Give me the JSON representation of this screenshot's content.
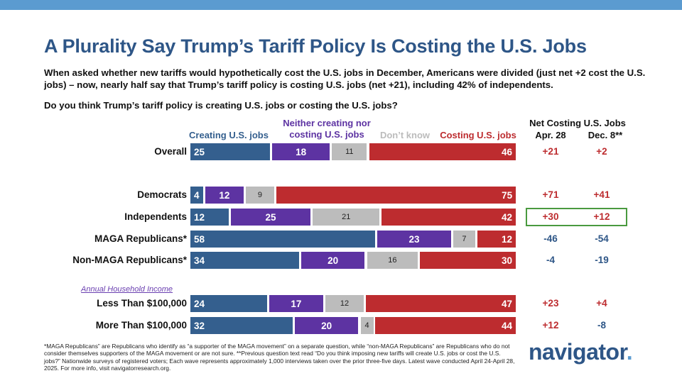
{
  "title": "A Plurality Say Trump’s Tariff Policy Is Costing the U.S. Jobs",
  "subtitle": "When asked whether new tariffs would hypothetically cost the U.S. jobs in December, Americans were divided (just net +2 cost the U.S. jobs) – now, nearly half say that Trump’s tariff policy is costing U.S. jobs (net +21), including 42% of independents.",
  "question": "Do you think Trump’s tariff policy is creating U.S. jobs or costing the U.S. jobs?",
  "colors": {
    "creating": "#345f8e",
    "neither": "#5d33a2",
    "dont_know": "#bcbcbc",
    "costing": "#bd2c2f",
    "title": "#2e5687",
    "highlight": "#4a9a3f"
  },
  "headers": {
    "creating": "Creating U.S. jobs",
    "neither_line1": "Neither creating nor",
    "neither_line2": "costing U.S. jobs",
    "dont_know": "Don’t know",
    "costing": "Costing U.S. jobs",
    "net_title": "Net Costing U.S. Jobs",
    "net_apr": "Apr. 28",
    "net_dec": "Dec. 8**"
  },
  "section_label": "Annual Household Income",
  "chart_data": {
    "type": "bar",
    "orientation": "horizontal-stacked-100",
    "categories": [
      "Overall",
      "Democrats",
      "Independents",
      "MAGA Republicans*",
      "Non-MAGA Republicans*",
      "Less Than $100,000",
      "More Than $100,000"
    ],
    "series": [
      {
        "name": "Creating U.S. jobs",
        "values": [
          25,
          4,
          12,
          58,
          34,
          24,
          32
        ]
      },
      {
        "name": "Neither creating nor costing U.S. jobs",
        "values": [
          18,
          12,
          25,
          23,
          20,
          17,
          20
        ]
      },
      {
        "name": "Don’t know",
        "values": [
          11,
          9,
          21,
          7,
          16,
          12,
          4
        ]
      },
      {
        "name": "Costing U.S. jobs",
        "values": [
          46,
          75,
          42,
          12,
          30,
          47,
          44
        ]
      }
    ],
    "net_costing": {
      "apr_28": [
        "+21",
        "+71",
        "+30",
        "-46",
        "-4",
        "+23",
        "+12"
      ],
      "dec_8": [
        "+2",
        "+41",
        "+12",
        "-54",
        "-19",
        "+4",
        "-8"
      ]
    }
  },
  "footnote": "*MAGA Republicans” are Republicans who identify as “a supporter of the MAGA movement” on a separate question, while “non-MAGA Republicans” are Republicans who do not consider themselves supporters of the MAGA movement or are not sure. **Previous question text read “Do you think imposing new tariffs will create U.S. jobs or cost the U.S. jobs?” Nationwide surveys of registered voters; Each wave represents approximately 1,000 interviews taken over the prior three-five days. Latest wave conducted April 24-April 28, 2025. For more info, visit navigatorresearch.org.",
  "logo": {
    "word": "navigator",
    "dot": "."
  }
}
